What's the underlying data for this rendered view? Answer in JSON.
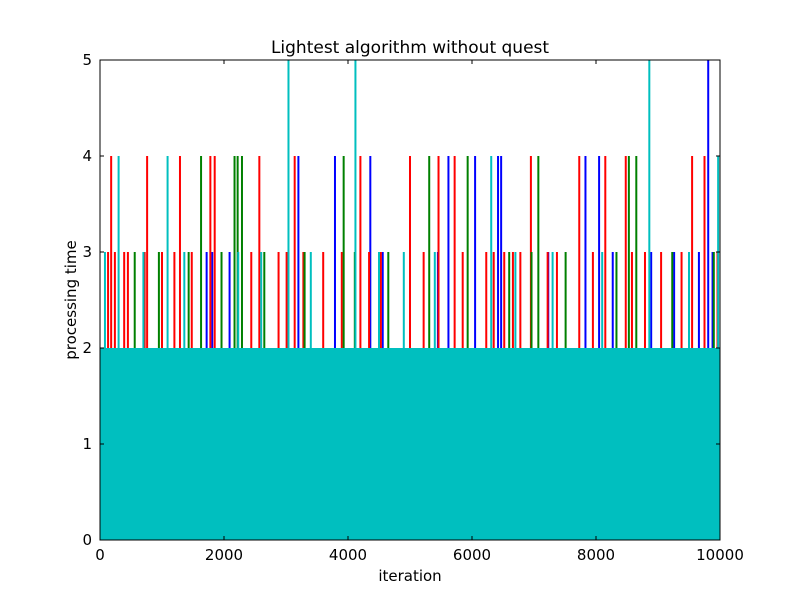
{
  "chart_data": {
    "type": "line",
    "title": "Lightest algorithm without quest",
    "xlabel": "iteration",
    "ylabel": "processing time",
    "xlim": [
      0,
      10000
    ],
    "ylim": [
      0,
      5
    ],
    "x_ticks": [
      0,
      2000,
      4000,
      6000,
      8000,
      10000
    ],
    "y_ticks": [
      0,
      1,
      2,
      3,
      4,
      5
    ],
    "x_tick_labels": [
      "0",
      "2000",
      "4000",
      "6000",
      "8000",
      "10000"
    ],
    "y_tick_labels": [
      "0",
      "1",
      "2",
      "3",
      "4",
      "5"
    ],
    "grid": false,
    "legend": "none",
    "base_fill": {
      "color": "#00bfbf",
      "level_min": 1,
      "level_max": 2
    },
    "series": [
      {
        "color": "#0000ff",
        "points": [
          [
            1720,
            3
          ],
          [
            1810,
            3
          ],
          [
            2090,
            3
          ],
          [
            3040,
            3
          ],
          [
            3200,
            4
          ],
          [
            3790,
            4
          ],
          [
            4360,
            4
          ],
          [
            4560,
            3
          ],
          [
            5450,
            3
          ],
          [
            5620,
            4
          ],
          [
            6050,
            4
          ],
          [
            6420,
            4
          ],
          [
            6470,
            4
          ],
          [
            7230,
            3
          ],
          [
            7830,
            4
          ],
          [
            8050,
            4
          ],
          [
            8270,
            3
          ],
          [
            8890,
            3
          ],
          [
            9260,
            3
          ],
          [
            9660,
            3
          ],
          [
            9810,
            5
          ],
          [
            9880,
            3
          ]
        ]
      },
      {
        "color": "#ff0000",
        "points": [
          [
            130,
            3
          ],
          [
            180,
            4
          ],
          [
            240,
            3
          ],
          [
            390,
            3
          ],
          [
            450,
            3
          ],
          [
            720,
            3
          ],
          [
            760,
            4
          ],
          [
            1000,
            3
          ],
          [
            1200,
            3
          ],
          [
            1290,
            4
          ],
          [
            1480,
            3
          ],
          [
            1780,
            4
          ],
          [
            1850,
            4
          ],
          [
            2440,
            3
          ],
          [
            2570,
            4
          ],
          [
            2880,
            3
          ],
          [
            3010,
            3
          ],
          [
            3140,
            4
          ],
          [
            3280,
            3
          ],
          [
            3600,
            3
          ],
          [
            3900,
            3
          ],
          [
            4200,
            4
          ],
          [
            4340,
            3
          ],
          [
            4530,
            3
          ],
          [
            5000,
            4
          ],
          [
            5220,
            3
          ],
          [
            5460,
            4
          ],
          [
            5720,
            4
          ],
          [
            5850,
            3
          ],
          [
            6230,
            3
          ],
          [
            6350,
            3
          ],
          [
            6520,
            3
          ],
          [
            6660,
            3
          ],
          [
            6780,
            3
          ],
          [
            6950,
            4
          ],
          [
            7220,
            3
          ],
          [
            7370,
            3
          ],
          [
            7730,
            4
          ],
          [
            7950,
            3
          ],
          [
            8150,
            4
          ],
          [
            8480,
            4
          ],
          [
            8580,
            3
          ],
          [
            8790,
            3
          ],
          [
            9050,
            3
          ],
          [
            9380,
            3
          ],
          [
            9550,
            4
          ],
          [
            9750,
            4
          ],
          [
            9960,
            3
          ]
        ]
      },
      {
        "color": "#008000",
        "points": [
          [
            560,
            3
          ],
          [
            950,
            3
          ],
          [
            1430,
            3
          ],
          [
            1630,
            4
          ],
          [
            1960,
            3
          ],
          [
            2170,
            4
          ],
          [
            2220,
            4
          ],
          [
            2290,
            4
          ],
          [
            2650,
            3
          ],
          [
            3300,
            3
          ],
          [
            3930,
            4
          ],
          [
            4110,
            3
          ],
          [
            4650,
            3
          ],
          [
            5310,
            4
          ],
          [
            5930,
            4
          ],
          [
            6600,
            3
          ],
          [
            6960,
            3
          ],
          [
            7070,
            4
          ],
          [
            7510,
            3
          ],
          [
            8330,
            3
          ],
          [
            8530,
            4
          ],
          [
            8650,
            4
          ],
          [
            9230,
            3
          ],
          [
            9900,
            3
          ]
        ]
      },
      {
        "color": "#00bfbf",
        "points": [
          [
            80,
            3
          ],
          [
            300,
            4
          ],
          [
            700,
            3
          ],
          [
            1090,
            4
          ],
          [
            1360,
            3
          ],
          [
            2230,
            3
          ],
          [
            2600,
            3
          ],
          [
            3040,
            5
          ],
          [
            3400,
            3
          ],
          [
            4120,
            5
          ],
          [
            4500,
            3
          ],
          [
            4900,
            3
          ],
          [
            5400,
            3
          ],
          [
            6310,
            4
          ],
          [
            6700,
            3
          ],
          [
            7300,
            3
          ],
          [
            8100,
            3
          ],
          [
            8860,
            5
          ],
          [
            9500,
            3
          ],
          [
            9970,
            4
          ]
        ]
      }
    ]
  }
}
